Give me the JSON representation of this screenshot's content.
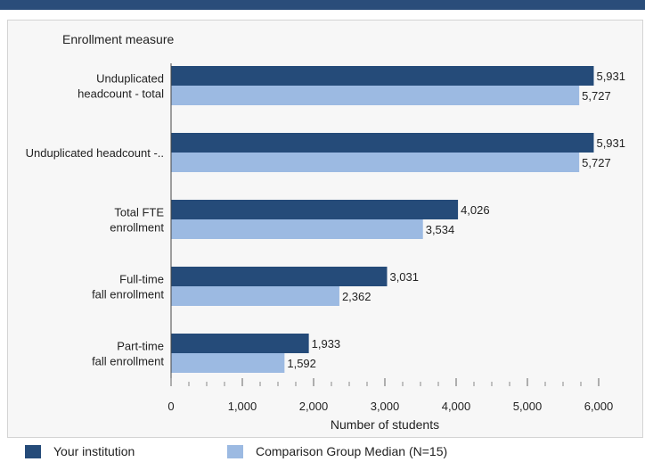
{
  "chart_data": {
    "type": "bar",
    "orientation": "horizontal",
    "title": "",
    "ylabel": "Enrollment measure",
    "xlabel": "Number of students",
    "xlim": [
      0,
      6000
    ],
    "xticks": [
      0,
      1000,
      2000,
      3000,
      4000,
      5000,
      6000
    ],
    "xtick_labels": [
      "0",
      "1,000",
      "2,000",
      "3,000",
      "4,000",
      "5,000",
      "6,000"
    ],
    "grid": false,
    "legend_position": "bottom",
    "categories": [
      [
        "Unduplicated",
        "headcount - total"
      ],
      [
        "Unduplicated headcount -.."
      ],
      [
        "Total FTE",
        "enrollment"
      ],
      [
        "Full-time",
        "fall enrollment"
      ],
      [
        "Part-time",
        "fall enrollment"
      ]
    ],
    "series": [
      {
        "name": "Your institution",
        "color": "#254b79",
        "values": [
          5931,
          5931,
          4026,
          3031,
          1933
        ],
        "labels": [
          "5,931",
          "5,931",
          "4,026",
          "3,031",
          "1,933"
        ]
      },
      {
        "name": "Comparison Group Median (N=15)",
        "color": "#9cbae2",
        "values": [
          5727,
          5727,
          3534,
          2362,
          1592
        ],
        "labels": [
          "5,727",
          "5,727",
          "3,534",
          "2,362",
          "1,592"
        ]
      }
    ]
  }
}
